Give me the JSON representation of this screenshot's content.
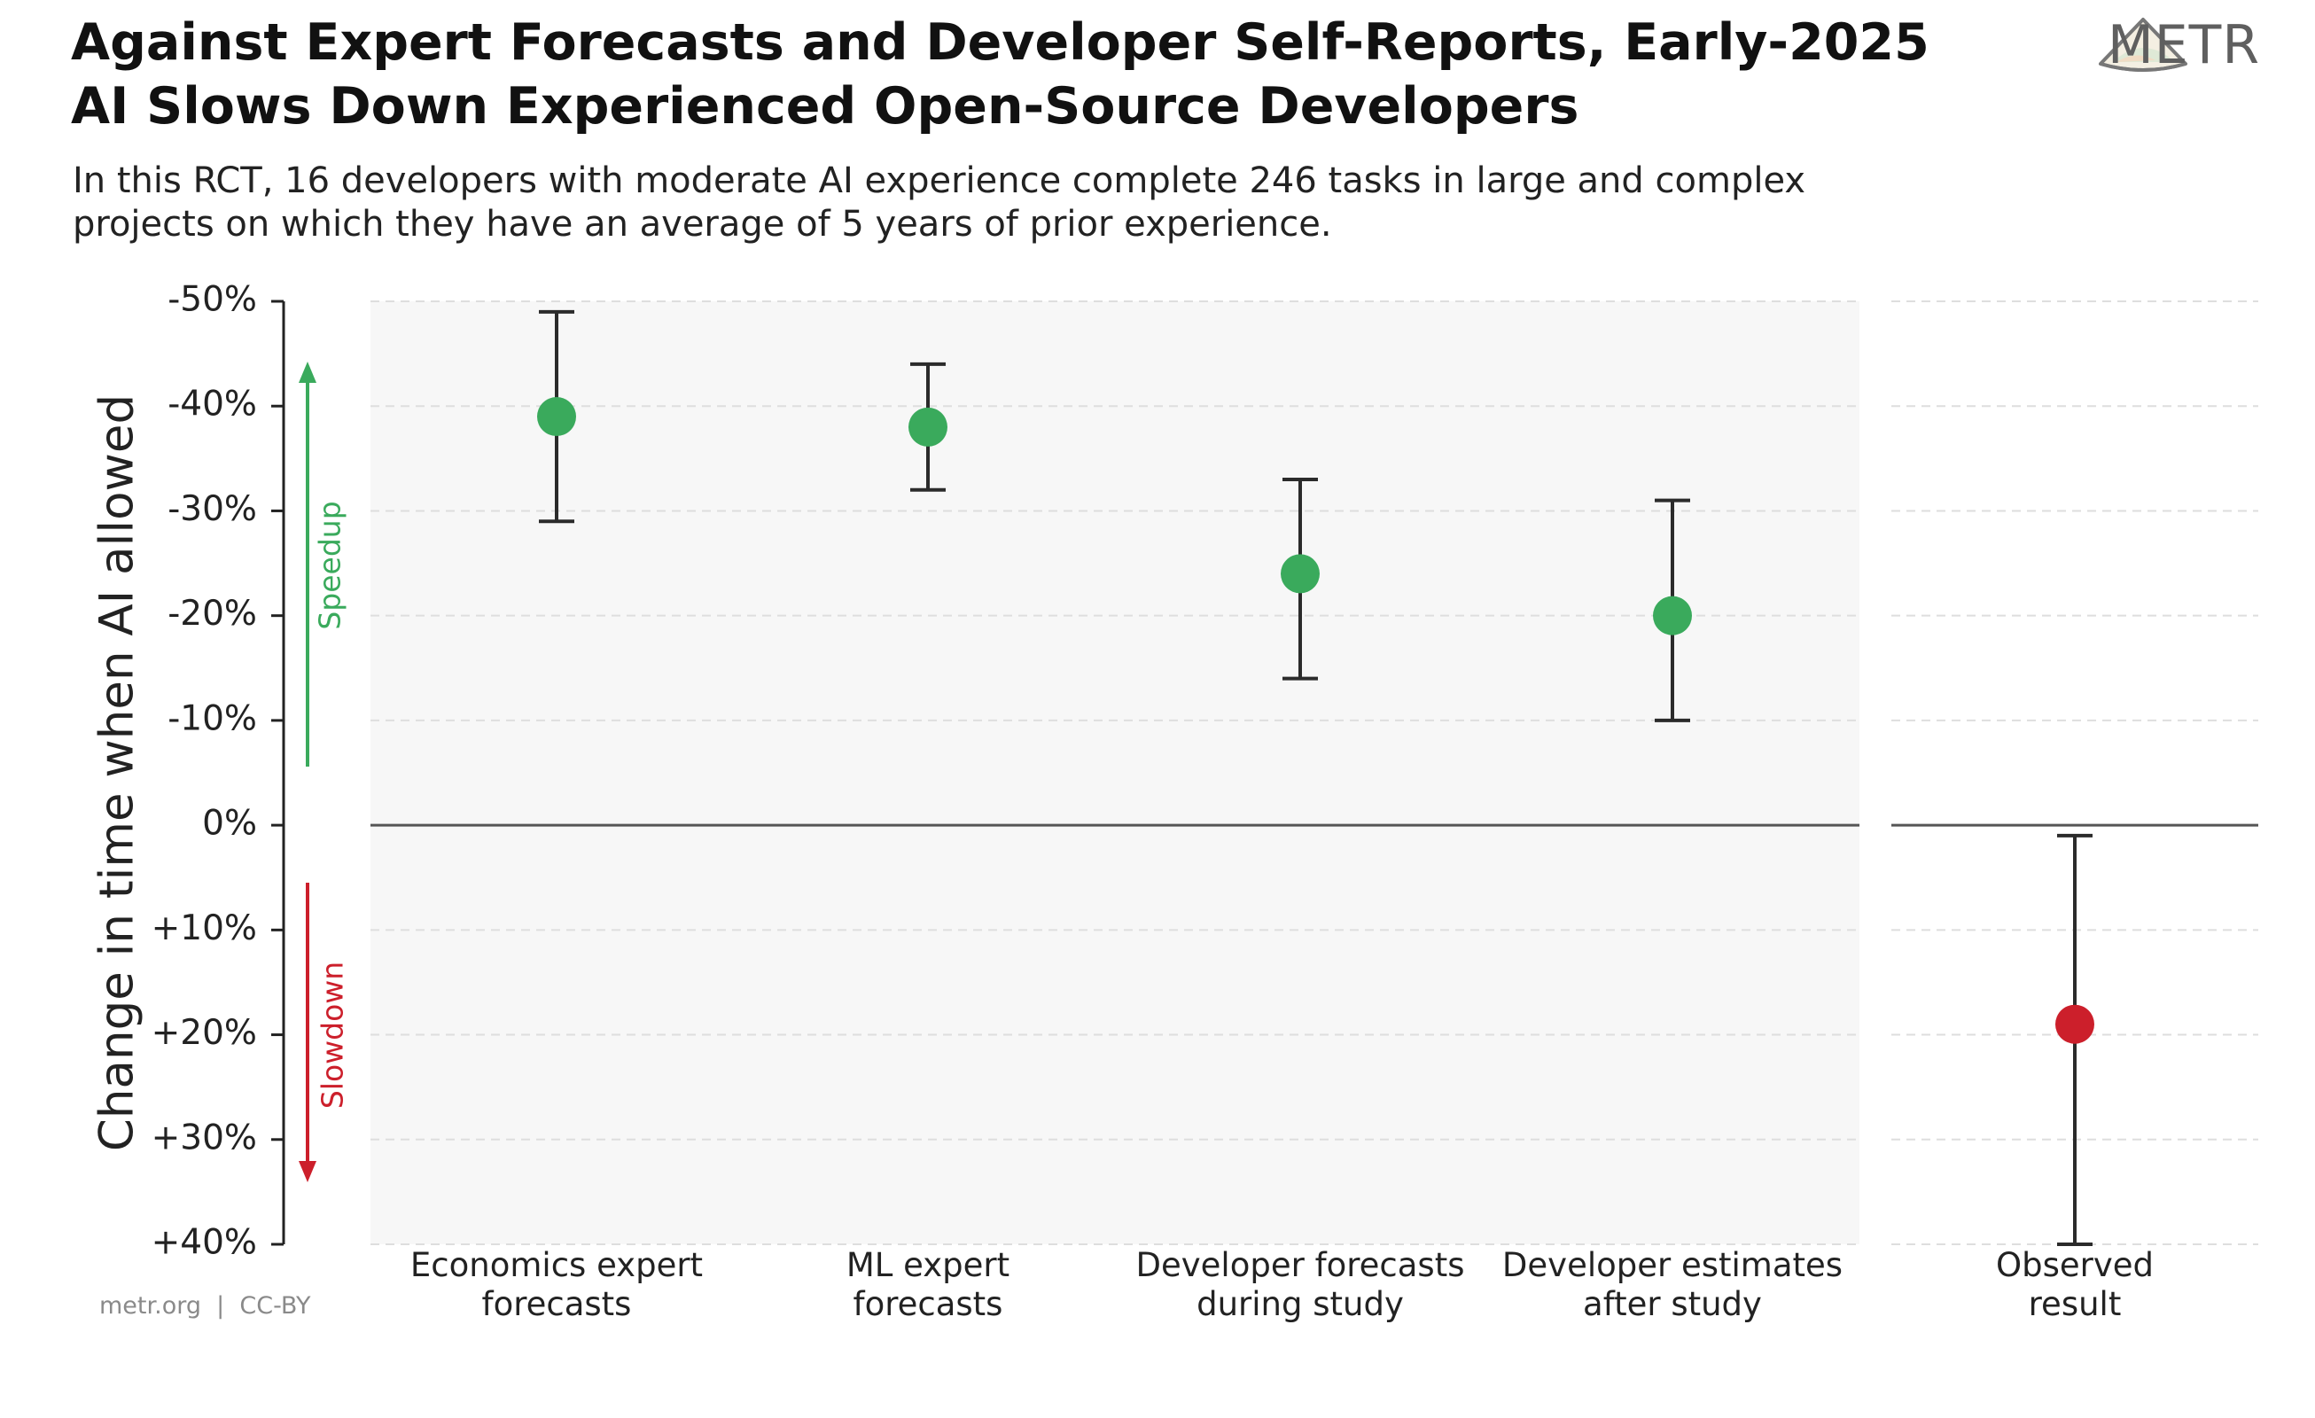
{
  "header": {
    "title_line1": "Against Expert Forecasts and Developer Self-Reports, Early-2025",
    "title_line2": "AI Slows Down Experienced Open-Source Developers",
    "subtitle_line1": "In this RCT, 16 developers with moderate AI experience complete 246 tasks in large and complex",
    "subtitle_line2": "projects on which they have an average of 5 years of prior experience."
  },
  "logo": {
    "text": "METR"
  },
  "footer": {
    "source": "metr.org  |  CC-BY"
  },
  "colors": {
    "speedup": "#3aaa5c",
    "slowdown": "#cc1f2b",
    "panel_bg": "#f7f7f7",
    "grid": "#dedede",
    "error_bar": "#2b2b2b",
    "zero_line": "#555555"
  },
  "chart_data": {
    "type": "scatter",
    "title": "Against Expert Forecasts and Developer Self-Reports, Early-2025 AI Slows Down Experienced Open-Source Developers",
    "ylabel": "Change in time when AI allowed",
    "y_inverted": true,
    "ylim": [
      -50,
      40
    ],
    "yticks": [
      -50,
      -40,
      -30,
      -20,
      -10,
      0,
      10,
      20,
      30,
      40
    ],
    "ytick_labels": [
      "-50%",
      "-40%",
      "-30%",
      "-20%",
      "-10%",
      "0%",
      "+10%",
      "+20%",
      "+30%",
      "+40%"
    ],
    "grid": true,
    "direction_labels": {
      "speedup": "Speedup",
      "slowdown": "Slowdown"
    },
    "panels": [
      {
        "name": "forecasts_and_estimates",
        "categories": [
          0,
          1,
          2,
          3
        ]
      },
      {
        "name": "observed",
        "categories": [
          4
        ]
      }
    ],
    "categories": [
      [
        "Economics expert",
        "forecasts"
      ],
      [
        "ML expert",
        "forecasts"
      ],
      [
        "Developer forecasts",
        "during study"
      ],
      [
        "Developer estimates",
        "after study"
      ],
      [
        "Observed",
        "result"
      ]
    ],
    "points": [
      {
        "value": -39,
        "ci_low": -49,
        "ci_high": -29,
        "status": "speedup"
      },
      {
        "value": -38,
        "ci_low": -44,
        "ci_high": -32,
        "status": "speedup"
      },
      {
        "value": -24,
        "ci_low": -33,
        "ci_high": -14,
        "status": "speedup"
      },
      {
        "value": -20,
        "ci_low": -31,
        "ci_high": -10,
        "status": "speedup"
      },
      {
        "value": 19,
        "ci_low": 1,
        "ci_high": 40,
        "status": "slowdown"
      }
    ]
  }
}
